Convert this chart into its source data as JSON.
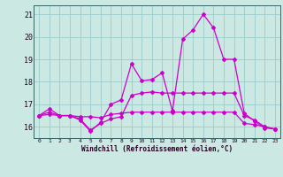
{
  "xlabel": "Windchill (Refroidissement éolien,°C)",
  "background_color": "#cce8e2",
  "grid_color": "#99cccc",
  "line_color": "#cc00cc",
  "x_values": [
    0,
    1,
    2,
    3,
    4,
    5,
    6,
    7,
    8,
    9,
    10,
    11,
    12,
    13,
    14,
    15,
    16,
    17,
    18,
    19,
    20,
    21,
    22,
    23
  ],
  "y_max": [
    16.5,
    16.8,
    16.5,
    16.5,
    16.3,
    15.8,
    16.2,
    17.0,
    17.2,
    18.8,
    18.05,
    18.1,
    18.4,
    16.7,
    19.9,
    20.3,
    21.0,
    20.4,
    19.0,
    19.0,
    16.6,
    16.25,
    15.95,
    15.9
  ],
  "y_mean": [
    16.5,
    16.55,
    16.5,
    16.5,
    16.45,
    16.45,
    16.4,
    16.55,
    16.6,
    16.65,
    16.65,
    16.65,
    16.65,
    16.65,
    16.65,
    16.65,
    16.65,
    16.65,
    16.65,
    16.65,
    16.15,
    16.1,
    16.0,
    15.9
  ],
  "y_min": [
    16.5,
    16.65,
    16.5,
    16.5,
    16.35,
    15.85,
    16.15,
    16.35,
    16.45,
    17.4,
    17.5,
    17.55,
    17.5,
    17.5,
    17.5,
    17.5,
    17.5,
    17.5,
    17.5,
    17.5,
    16.5,
    16.3,
    16.0,
    15.9
  ],
  "ylim": [
    15.5,
    21.4
  ],
  "yticks": [
    16,
    17,
    18,
    19,
    20,
    21
  ],
  "xlim": [
    -0.5,
    23.5
  ],
  "xticks": [
    0,
    1,
    2,
    3,
    4,
    5,
    6,
    7,
    8,
    9,
    10,
    11,
    12,
    13,
    14,
    15,
    16,
    17,
    18,
    19,
    20,
    21,
    22,
    23
  ],
  "figsize": [
    3.2,
    2.0
  ],
  "dpi": 100
}
